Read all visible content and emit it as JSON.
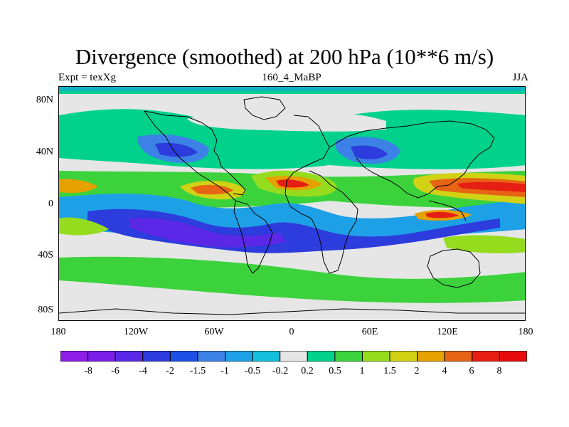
{
  "map": {
    "title": "Divergence (smoothed) at 200 hPa (10**6 m/s)",
    "left_label": "Expt = texXg",
    "center_label": "160_4_MaBP",
    "right_label": "JJA",
    "lat_ticks": [
      "80N",
      "40N",
      "0",
      "40S",
      "80S"
    ],
    "lon_ticks": [
      "180",
      "120W",
      "60W",
      "0",
      "60E",
      "120E",
      "180"
    ],
    "projection": "cylindrical equidistant, 180W to 180E, 90S to 90N",
    "background_color": "#e6e6e6",
    "features": [
      {
        "name": "equatorial-convergence-band",
        "level": "-2"
      },
      {
        "name": "tropical-divergence-maximum",
        "level": "6"
      }
    ]
  },
  "colorbar": {
    "labels": [
      "-8",
      "-6",
      "-4",
      "-2",
      "-1.5",
      "-1",
      "-0.5",
      "-0.2",
      "0.2",
      "0.5",
      "1",
      "1.5",
      "2",
      "4",
      "6",
      "8"
    ],
    "colors": [
      "#8c1ee6",
      "#7b1ee8",
      "#5a28e6",
      "#2d3cdc",
      "#1e50e6",
      "#3c82e6",
      "#1ea0e6",
      "#14bedc",
      "#e6e6e6",
      "#00d28c",
      "#3cd23c",
      "#96dc1e",
      "#d2d214",
      "#e6a000",
      "#e66414",
      "#e61e14",
      "#e60a0a"
    ]
  }
}
